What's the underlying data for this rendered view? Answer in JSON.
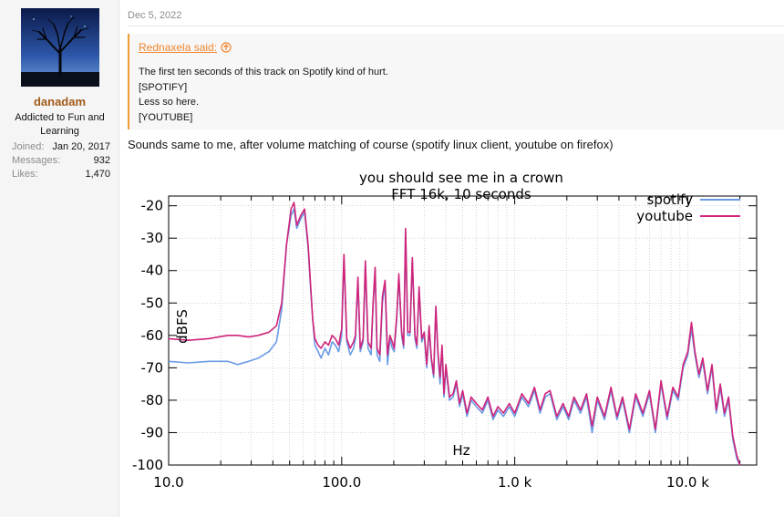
{
  "user": {
    "name": "danadam",
    "title": "Addicted to Fun and Learning",
    "stats": [
      {
        "label": "Joined:",
        "value": "Jan 20, 2017"
      },
      {
        "label": "Messages:",
        "value": "932"
      },
      {
        "label": "Likes:",
        "value": "1,470"
      }
    ]
  },
  "post": {
    "date": "Dec 5, 2022",
    "quote": {
      "author": "Rednaxela said:",
      "lines": [
        "The first ten seconds of this track on Spotify kind of hurt.",
        "[SPOTIFY]",
        "Less so here.",
        "[YOUTUBE]"
      ]
    },
    "reply_text": "Sounds same to me, after volume matching of course (spotify linux client, youtube on firefox)"
  },
  "colors": {
    "username": "#a05a1a",
    "quote_accent": "#f39c34",
    "spotify": "#6a9ae6",
    "youtube": "#d0247a"
  },
  "chart_data": {
    "type": "line",
    "title": "you should see me in a crown",
    "subtitle": "FFT 16k, 10 seconds",
    "xlabel": "Hz",
    "ylabel": "dBFS",
    "xscale": "log",
    "xlim": [
      10,
      25000
    ],
    "ylim": [
      -100,
      -17
    ],
    "xticks": [
      10,
      100,
      1000,
      10000
    ],
    "xtick_labels": [
      "10.0",
      "100.0",
      "1.0 k",
      "10.0 k"
    ],
    "yticks": [
      -20,
      -30,
      -40,
      -50,
      -60,
      -70,
      -80,
      -90,
      -100
    ],
    "ytick_labels": [
      "-20",
      "-30",
      "-40",
      "-50",
      "-60",
      "-70",
      "-80",
      "-90",
      "-100"
    ],
    "grid": true,
    "legend": "top-right",
    "series": [
      {
        "name": "spotify",
        "color": "#6a9ae6",
        "points": [
          [
            10,
            -68
          ],
          [
            13,
            -68.5
          ],
          [
            17,
            -68
          ],
          [
            22,
            -68
          ],
          [
            25,
            -69
          ],
          [
            29,
            -68
          ],
          [
            33,
            -67
          ],
          [
            38,
            -65
          ],
          [
            42,
            -62
          ],
          [
            45,
            -52
          ],
          [
            48,
            -32
          ],
          [
            51,
            -23
          ],
          [
            53,
            -21
          ],
          [
            55,
            -27
          ],
          [
            58,
            -24
          ],
          [
            61,
            -22
          ],
          [
            64,
            -33
          ],
          [
            66,
            -45
          ],
          [
            68,
            -55
          ],
          [
            70,
            -63
          ],
          [
            73,
            -65
          ],
          [
            76,
            -67
          ],
          [
            80,
            -64
          ],
          [
            84,
            -66
          ],
          [
            88,
            -62
          ],
          [
            92,
            -63
          ],
          [
            96,
            -65
          ],
          [
            100,
            -60
          ],
          [
            103,
            -36
          ],
          [
            107,
            -62
          ],
          [
            112,
            -66
          ],
          [
            117,
            -64
          ],
          [
            120,
            -61
          ],
          [
            124,
            -43
          ],
          [
            128,
            -65
          ],
          [
            133,
            -62
          ],
          [
            137,
            -38
          ],
          [
            142,
            -64
          ],
          [
            148,
            -66
          ],
          [
            152,
            -50
          ],
          [
            156,
            -40
          ],
          [
            160,
            -66
          ],
          [
            166,
            -68
          ],
          [
            172,
            -50
          ],
          [
            178,
            -44
          ],
          [
            184,
            -69
          ],
          [
            190,
            -61
          ],
          [
            196,
            -64
          ],
          [
            201,
            -65
          ],
          [
            208,
            -55
          ],
          [
            214,
            -42
          ],
          [
            222,
            -60
          ],
          [
            228,
            -64
          ],
          [
            234,
            -28
          ],
          [
            241,
            -60
          ],
          [
            248,
            -60
          ],
          [
            256,
            -37
          ],
          [
            265,
            -61
          ],
          [
            272,
            -64
          ],
          [
            280,
            -46
          ],
          [
            290,
            -62
          ],
          [
            300,
            -60
          ],
          [
            310,
            -70
          ],
          [
            320,
            -58
          ],
          [
            330,
            -68
          ],
          [
            340,
            -73
          ],
          [
            350,
            -52
          ],
          [
            360,
            -66
          ],
          [
            370,
            -75
          ],
          [
            380,
            -64
          ],
          [
            390,
            -79
          ],
          [
            400,
            -70
          ],
          [
            420,
            -80
          ],
          [
            440,
            -79
          ],
          [
            460,
            -75
          ],
          [
            480,
            -82
          ],
          [
            500,
            -78
          ],
          [
            530,
            -85
          ],
          [
            560,
            -80
          ],
          [
            600,
            -82
          ],
          [
            650,
            -84
          ],
          [
            700,
            -80
          ],
          [
            750,
            -86
          ],
          [
            800,
            -83
          ],
          [
            860,
            -85
          ],
          [
            930,
            -82
          ],
          [
            1000,
            -85
          ],
          [
            1100,
            -79
          ],
          [
            1200,
            -82
          ],
          [
            1300,
            -77
          ],
          [
            1400,
            -84
          ],
          [
            1500,
            -79
          ],
          [
            1600,
            -78
          ],
          [
            1750,
            -86
          ],
          [
            1900,
            -82
          ],
          [
            2050,
            -86
          ],
          [
            2200,
            -80
          ],
          [
            2400,
            -84
          ],
          [
            2600,
            -79
          ],
          [
            2800,
            -90
          ],
          [
            3000,
            -80
          ],
          [
            3300,
            -86
          ],
          [
            3600,
            -77
          ],
          [
            3900,
            -86
          ],
          [
            4200,
            -80
          ],
          [
            4600,
            -90
          ],
          [
            5000,
            -79
          ],
          [
            5500,
            -85
          ],
          [
            6000,
            -78
          ],
          [
            6500,
            -90
          ],
          [
            7000,
            -75
          ],
          [
            7600,
            -86
          ],
          [
            8200,
            -77
          ],
          [
            8800,
            -80
          ],
          [
            9400,
            -70
          ],
          [
            10000,
            -66
          ],
          [
            10500,
            -58
          ],
          [
            11000,
            -66
          ],
          [
            11600,
            -73
          ],
          [
            12200,
            -68
          ],
          [
            13000,
            -78
          ],
          [
            13800,
            -70
          ],
          [
            14600,
            -84
          ],
          [
            15400,
            -76
          ],
          [
            16300,
            -85
          ],
          [
            17200,
            -80
          ],
          [
            18200,
            -92
          ],
          [
            19200,
            -98
          ],
          [
            20000,
            -100
          ]
        ]
      },
      {
        "name": "youtube",
        "color": "#d0247a",
        "points": [
          [
            10,
            -61
          ],
          [
            13,
            -61.5
          ],
          [
            17,
            -61
          ],
          [
            22,
            -60
          ],
          [
            25,
            -60
          ],
          [
            29,
            -60.5
          ],
          [
            33,
            -60
          ],
          [
            38,
            -59
          ],
          [
            42,
            -57
          ],
          [
            45,
            -50
          ],
          [
            48,
            -32
          ],
          [
            51,
            -21
          ],
          [
            53,
            -19
          ],
          [
            55,
            -26
          ],
          [
            58,
            -23
          ],
          [
            61,
            -21
          ],
          [
            64,
            -32
          ],
          [
            66,
            -44
          ],
          [
            68,
            -55
          ],
          [
            70,
            -61
          ],
          [
            73,
            -63
          ],
          [
            76,
            -64
          ],
          [
            80,
            -62
          ],
          [
            84,
            -63
          ],
          [
            88,
            -60
          ],
          [
            92,
            -61
          ],
          [
            96,
            -63
          ],
          [
            100,
            -58
          ],
          [
            103,
            -35
          ],
          [
            107,
            -61
          ],
          [
            112,
            -64
          ],
          [
            117,
            -62
          ],
          [
            120,
            -60
          ],
          [
            124,
            -42
          ],
          [
            128,
            -64
          ],
          [
            133,
            -61
          ],
          [
            137,
            -37
          ],
          [
            142,
            -62
          ],
          [
            148,
            -64
          ],
          [
            152,
            -50
          ],
          [
            156,
            -39
          ],
          [
            160,
            -64
          ],
          [
            166,
            -66
          ],
          [
            172,
            -48
          ],
          [
            178,
            -43
          ],
          [
            184,
            -66
          ],
          [
            190,
            -60
          ],
          [
            196,
            -62
          ],
          [
            201,
            -64
          ],
          [
            208,
            -54
          ],
          [
            214,
            -41
          ],
          [
            222,
            -59
          ],
          [
            228,
            -63
          ],
          [
            234,
            -27
          ],
          [
            241,
            -59
          ],
          [
            248,
            -59
          ],
          [
            256,
            -36
          ],
          [
            265,
            -60
          ],
          [
            272,
            -63
          ],
          [
            280,
            -45
          ],
          [
            290,
            -61
          ],
          [
            300,
            -59
          ],
          [
            310,
            -69
          ],
          [
            320,
            -57
          ],
          [
            330,
            -67
          ],
          [
            340,
            -72
          ],
          [
            350,
            -51
          ],
          [
            360,
            -65
          ],
          [
            370,
            -73
          ],
          [
            380,
            -63
          ],
          [
            390,
            -78
          ],
          [
            400,
            -69
          ],
          [
            420,
            -79
          ],
          [
            440,
            -78
          ],
          [
            460,
            -74
          ],
          [
            480,
            -81
          ],
          [
            500,
            -77
          ],
          [
            530,
            -84
          ],
          [
            560,
            -79
          ],
          [
            600,
            -81
          ],
          [
            650,
            -83
          ],
          [
            700,
            -79
          ],
          [
            750,
            -85
          ],
          [
            800,
            -82
          ],
          [
            860,
            -84
          ],
          [
            930,
            -81
          ],
          [
            1000,
            -84
          ],
          [
            1100,
            -78
          ],
          [
            1200,
            -81
          ],
          [
            1300,
            -76
          ],
          [
            1400,
            -83
          ],
          [
            1500,
            -78
          ],
          [
            1600,
            -77
          ],
          [
            1750,
            -85
          ],
          [
            1900,
            -81
          ],
          [
            2050,
            -85
          ],
          [
            2200,
            -79
          ],
          [
            2400,
            -83
          ],
          [
            2600,
            -78
          ],
          [
            2800,
            -88
          ],
          [
            3000,
            -79
          ],
          [
            3300,
            -85
          ],
          [
            3600,
            -76
          ],
          [
            3900,
            -85
          ],
          [
            4200,
            -79
          ],
          [
            4600,
            -89
          ],
          [
            5000,
            -78
          ],
          [
            5500,
            -84
          ],
          [
            6000,
            -77
          ],
          [
            6500,
            -89
          ],
          [
            7000,
            -74
          ],
          [
            7600,
            -85
          ],
          [
            8200,
            -76
          ],
          [
            8800,
            -79
          ],
          [
            9400,
            -69
          ],
          [
            10000,
            -65
          ],
          [
            10500,
            -56
          ],
          [
            11000,
            -65
          ],
          [
            11600,
            -72
          ],
          [
            12200,
            -67
          ],
          [
            13000,
            -77
          ],
          [
            13800,
            -69
          ],
          [
            14600,
            -83
          ],
          [
            15400,
            -75
          ],
          [
            16300,
            -84
          ],
          [
            17200,
            -79
          ],
          [
            18200,
            -91
          ],
          [
            19200,
            -97
          ],
          [
            20000,
            -100
          ]
        ]
      }
    ]
  }
}
